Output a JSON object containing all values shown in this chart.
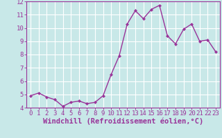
{
  "x": [
    0,
    1,
    2,
    3,
    4,
    5,
    6,
    7,
    8,
    9,
    10,
    11,
    12,
    13,
    14,
    15,
    16,
    17,
    18,
    19,
    20,
    21,
    22,
    23
  ],
  "y": [
    4.9,
    5.1,
    4.8,
    4.6,
    4.1,
    4.4,
    4.5,
    4.3,
    4.4,
    4.9,
    6.5,
    7.9,
    10.3,
    11.3,
    10.7,
    11.4,
    11.7,
    9.4,
    8.8,
    9.9,
    10.3,
    9.0,
    9.1,
    8.2
  ],
  "xlabel": "Windchill (Refroidissement éolien,°C)",
  "line_color": "#993399",
  "marker_color": "#993399",
  "bg_color": "#c8e8e8",
  "grid_color": "#ffffff",
  "text_color": "#993399",
  "spine_color": "#993399",
  "ylim": [
    4,
    12
  ],
  "yticks": [
    4,
    5,
    6,
    7,
    8,
    9,
    10,
    11,
    12
  ],
  "xticks": [
    0,
    1,
    2,
    3,
    4,
    5,
    6,
    7,
    8,
    9,
    10,
    11,
    12,
    13,
    14,
    15,
    16,
    17,
    18,
    19,
    20,
    21,
    22,
    23
  ],
  "tick_label_size": 6.5,
  "xlabel_size": 7.5
}
